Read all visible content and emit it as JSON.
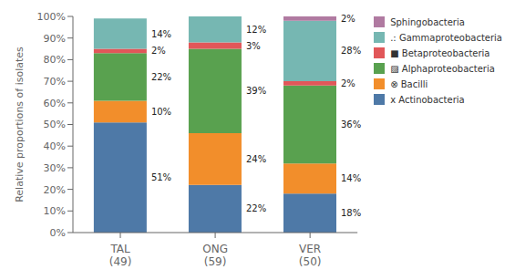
{
  "chart_data": {
    "type": "bar",
    "stacked": true,
    "categories": [
      "TAL\n(49)",
      "ONG\n(59)",
      "VER\n(50)"
    ],
    "ylabel": "Relative proportions of isolates",
    "series": [
      {
        "name": "x Actinobacteria",
        "color": "#4e79a7",
        "values": [
          51,
          22,
          18
        ],
        "value_labels": [
          "51%",
          "22%",
          "18%"
        ]
      },
      {
        "name": "⊗ Bacilli",
        "color": "#f28e2b",
        "values": [
          10,
          24,
          14
        ],
        "value_labels": [
          "10%",
          "24%",
          "14%"
        ]
      },
      {
        "name": "▨ Alphaproteobacteria",
        "color": "#59a14f",
        "values": [
          22,
          39,
          36
        ],
        "value_labels": [
          "22%",
          "39%",
          "36%"
        ]
      },
      {
        "name": "■ Betaproteobacteria",
        "color": "#e15759",
        "values": [
          2,
          3,
          2
        ],
        "value_labels": [
          "2%",
          "3%",
          "2%"
        ]
      },
      {
        "name": ".: Gammaproteobacteria",
        "color": "#76b7b2",
        "values": [
          14,
          12,
          28
        ],
        "value_labels": [
          "14%",
          "12%",
          "28%"
        ]
      },
      {
        "name": "Sphingobacteria",
        "color": "#b07aa1",
        "values": [
          0,
          0,
          2
        ],
        "value_labels": [
          null,
          null,
          "2%"
        ]
      }
    ],
    "ylim": [
      0,
      100
    ],
    "yticks": [
      {
        "value": 0,
        "label": "0%"
      },
      {
        "value": 10,
        "label": "10%"
      },
      {
        "value": 20,
        "label": "20%"
      },
      {
        "value": 30,
        "label": "30%"
      },
      {
        "value": 40,
        "label": "40%"
      },
      {
        "value": 50,
        "label": "50%"
      },
      {
        "value": 60,
        "label": "60%"
      },
      {
        "value": 70,
        "label": "70%"
      },
      {
        "value": 80,
        "label": "80%"
      },
      {
        "value": 90,
        "label": "90%"
      },
      {
        "value": 100,
        "label": "100%"
      }
    ],
    "grid": false,
    "legend": "upper right",
    "data_labels": true
  }
}
